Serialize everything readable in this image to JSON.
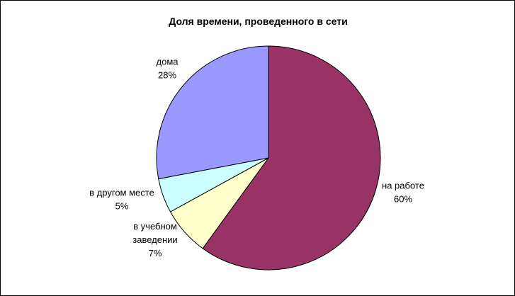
{
  "chart_data": {
    "type": "pie",
    "title": "Доля времени, проведенного в сети",
    "slices": [
      {
        "label_lines": [
          "на работе",
          "60%"
        ],
        "value": 60,
        "color": "#993366"
      },
      {
        "label_lines": [
          "в учебном",
          "заведении",
          "7%"
        ],
        "value": 7,
        "color": "#FFFFCC"
      },
      {
        "label_lines": [
          "в другом месте",
          "5%"
        ],
        "value": 5,
        "color": "#CCFFFF"
      },
      {
        "label_lines": [
          "дома",
          "28%"
        ],
        "value": 28,
        "color": "#9999FF"
      }
    ],
    "start_angle_deg": 0,
    "direction": "clockwise",
    "legend": "none"
  }
}
